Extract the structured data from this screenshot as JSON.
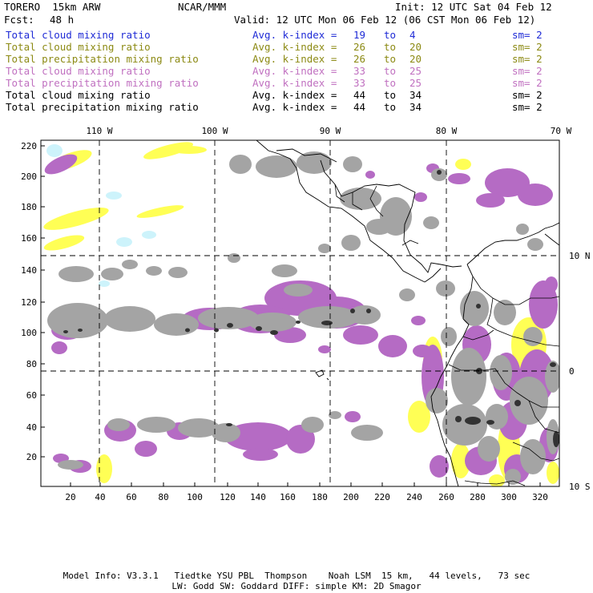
{
  "header": {
    "model": "TORERO  15km ARW",
    "center": "NCAR/MMM",
    "init": "Init: 12 UTC Sat 04 Feb 12",
    "fcst_label": "Fcst:",
    "fcst_value": "48 h",
    "valid": "Valid: 12 UTC Mon 06 Feb 12 (06 CST Mon 06 Feb 12)"
  },
  "legend": [
    {
      "field": "Total cloud mixing ratio",
      "label": "Avg. k-index =",
      "v1": "19",
      "to": "to",
      "v2": "4",
      "sm": "sm= 2",
      "color": "#1f2bd6"
    },
    {
      "field": "Total cloud mixing ratio",
      "label": "Avg. k-index =",
      "v1": "26",
      "to": "to",
      "v2": "20",
      "sm": "sm= 2",
      "color": "#8c8a14"
    },
    {
      "field": "Total precipitation mixing ratio",
      "label": "Avg. k-index =",
      "v1": "26",
      "to": "to",
      "v2": "20",
      "sm": "sm= 2",
      "color": "#8c8a14"
    },
    {
      "field": "Total cloud mixing ratio",
      "label": "Avg. k-index =",
      "v1": "33",
      "to": "to",
      "v2": "25",
      "sm": "sm= 2",
      "color": "#c070c0"
    },
    {
      "field": "Total precipitation mixing ratio",
      "label": "Avg. k-index =",
      "v1": "33",
      "to": "to",
      "v2": "25",
      "sm": "sm= 2",
      "color": "#c070c0"
    },
    {
      "field": "Total cloud mixing ratio",
      "label": "Avg. k-index =",
      "v1": "44",
      "to": "to",
      "v2": "34",
      "sm": "sm= 2",
      "color": "#000000"
    },
    {
      "field": "Total precipitation mixing ratio",
      "label": "Avg. k-index =",
      "v1": "44",
      "to": "to",
      "v2": "34",
      "sm": "sm= 2",
      "color": "#000000"
    }
  ],
  "map": {
    "colors": {
      "light_blue": "#cdf3fb",
      "yellow": "#ffff55",
      "purple": "#b56bc4",
      "gray": "#a0a0a0",
      "dark": "#303030",
      "coast": "#000000"
    },
    "top_lon_labels": [
      "110 W",
      "100 W",
      "90 W",
      "80 W",
      "70 W"
    ],
    "right_lat_labels": [
      "10 N",
      "0",
      "10 S"
    ],
    "y_ticks": [
      "220",
      "200",
      "180",
      "160",
      "140",
      "120",
      "100",
      "80",
      "60",
      "40",
      "20"
    ],
    "x_ticks": [
      "20",
      "40",
      "60",
      "80",
      "100",
      "120",
      "140",
      "160",
      "180",
      "200",
      "220",
      "240",
      "260",
      "280",
      "300",
      "320"
    ]
  },
  "footer": {
    "line1": "Model Info: V3.3.1   Tiedtke YSU PBL  Thompson    Noah LSM  15 km,   44 levels,   73 sec",
    "line2": "LW: Godd SW: Goddard DIFF: simple KM: 2D Smagor"
  }
}
